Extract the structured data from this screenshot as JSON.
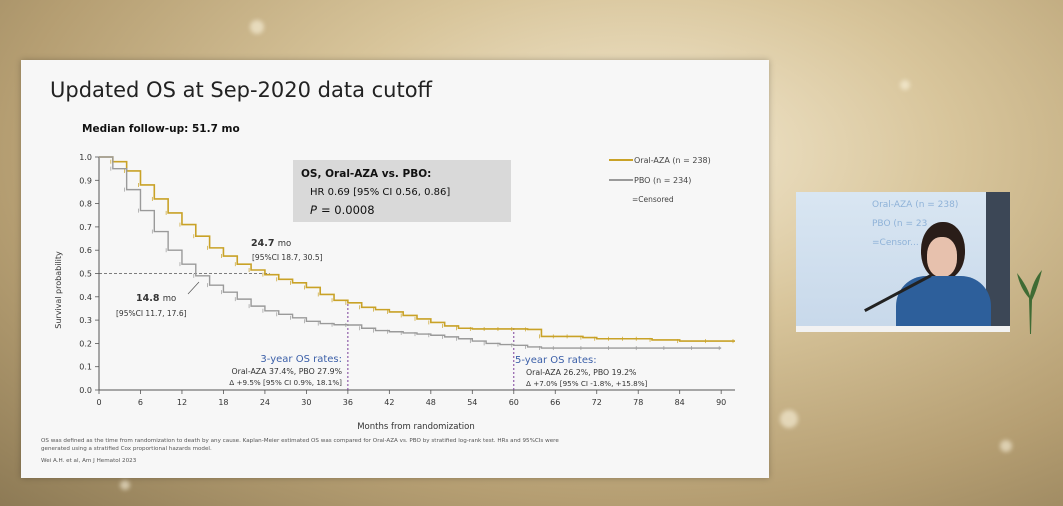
{
  "slide": {
    "title": "Updated OS at Sep-2020 data cutoff",
    "median_followup": "Median follow-up: 51.7 mo",
    "footnote_line1": "OS was defined as the time from randomization to death by any cause. Kaplan-Meier estimated OS was compared for Oral-AZA vs. PBO by stratified log-rank test. HRs and 95%CIs were",
    "footnote_line2": "generated using a stratified Cox proportional hazards model.",
    "citation": "Wei A.H. et al, Am J Hematol 2023"
  },
  "chart_data": {
    "type": "line",
    "xlabel": "Months from randomization",
    "ylabel": "Survival probability",
    "xlim": [
      0,
      92
    ],
    "ylim": [
      0,
      1.0
    ],
    "x_ticks": [
      0,
      6,
      12,
      18,
      24,
      30,
      36,
      42,
      48,
      54,
      60,
      66,
      72,
      78,
      84,
      90
    ],
    "y_ticks": [
      "0.0",
      "0.1",
      "0.2",
      "0.3",
      "0.4",
      "0.5",
      "0.6",
      "0.7",
      "0.8",
      "0.9",
      "1.0"
    ],
    "x_tick_labels": [
      "0",
      "6",
      "12",
      "18",
      "24",
      "30",
      "36",
      "42",
      "48",
      "54",
      "60",
      "66",
      "72",
      "78",
      "84",
      "90"
    ],
    "grid": false,
    "legend_position": "top-right",
    "series": [
      {
        "name": "Oral-AZA (n = 238)",
        "color": "#c9a227",
        "x": [
          0,
          2,
          4,
          6,
          8,
          10,
          12,
          14,
          16,
          18,
          20,
          22,
          24,
          26,
          28,
          30,
          32,
          34,
          36,
          38,
          40,
          42,
          44,
          46,
          48,
          50,
          52,
          54,
          56,
          58,
          60,
          62,
          64,
          66,
          68,
          70,
          72,
          74,
          76,
          78,
          80,
          84,
          88,
          92
        ],
        "y": [
          1.0,
          0.98,
          0.94,
          0.88,
          0.82,
          0.76,
          0.71,
          0.66,
          0.61,
          0.575,
          0.54,
          0.515,
          0.495,
          0.475,
          0.46,
          0.44,
          0.41,
          0.385,
          0.374,
          0.355,
          0.345,
          0.335,
          0.32,
          0.305,
          0.29,
          0.275,
          0.265,
          0.262,
          0.262,
          0.262,
          0.262,
          0.26,
          0.23,
          0.23,
          0.23,
          0.225,
          0.22,
          0.22,
          0.22,
          0.22,
          0.215,
          0.21,
          0.21,
          0.21
        ]
      },
      {
        "name": "PBO (n = 234)",
        "color": "#9a9a9a",
        "x": [
          0,
          2,
          4,
          6,
          8,
          10,
          12,
          14,
          16,
          18,
          20,
          22,
          24,
          26,
          28,
          30,
          32,
          34,
          36,
          38,
          40,
          42,
          44,
          46,
          48,
          50,
          52,
          54,
          56,
          58,
          60,
          62,
          64,
          66,
          70,
          74,
          78,
          82,
          86,
          90
        ],
        "y": [
          1.0,
          0.95,
          0.86,
          0.77,
          0.68,
          0.6,
          0.54,
          0.49,
          0.45,
          0.42,
          0.39,
          0.36,
          0.34,
          0.325,
          0.31,
          0.295,
          0.285,
          0.28,
          0.279,
          0.265,
          0.255,
          0.25,
          0.245,
          0.24,
          0.235,
          0.228,
          0.22,
          0.21,
          0.2,
          0.195,
          0.192,
          0.185,
          0.18,
          0.18,
          0.18,
          0.18,
          0.18,
          0.18,
          0.18,
          0.18
        ]
      }
    ],
    "legend": {
      "items": [
        {
          "label": "Oral-AZA (n = 238)",
          "color": "#c9a227"
        },
        {
          "label": "PBO (n = 234)",
          "color": "#9a9a9a"
        },
        {
          "label": "=Censored",
          "color": "#9a9a9a"
        }
      ]
    },
    "stats_box": {
      "title": "OS, Oral-AZA vs. PBO:",
      "hr": "HR 0.69 [95% CI 0.56, 0.86]",
      "p_label": "P",
      "p_value": "= 0.0008"
    },
    "annotations": {
      "aza_median": {
        "value": "24.7",
        "unit": "mo",
        "ci": "[95%CI 18.7, 30.5]",
        "x": 24.7,
        "y": 0.5
      },
      "pbo_median": {
        "value": "14.8",
        "unit": "mo",
        "ci": "[95%CI 11.7, 17.6]",
        "x": 14.8,
        "y": 0.5
      },
      "three_year": {
        "x": 36,
        "title": "3-year OS rates:",
        "line1": "Oral-AZA 37.4%, PBO 27.9%",
        "line2": "Δ +9.5% [95% CI 0.9%, 18.1%]"
      },
      "five_year": {
        "x": 60,
        "title": "5-year OS rates:",
        "line1": "Oral-AZA 26.2%, PBO 19.2%",
        "line2": "Δ +7.0% [95% CI -1.8%, +15.8%]"
      }
    }
  },
  "speaker_panel": {
    "slide_legend_1": "Oral-AZA (n = 238)",
    "slide_legend_2": "PBO (n = 23",
    "slide_legend_3": "=Censor..."
  }
}
